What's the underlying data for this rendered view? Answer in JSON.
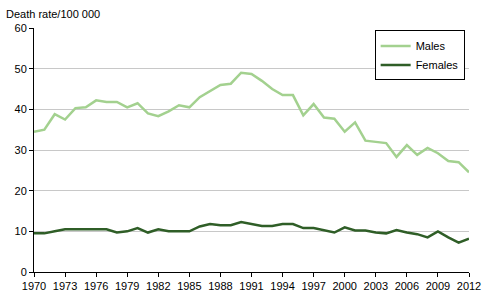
{
  "chart_data": {
    "type": "line",
    "y_label": "Death rate/100 000",
    "x": [
      1970,
      1971,
      1972,
      1973,
      1974,
      1975,
      1976,
      1977,
      1978,
      1979,
      1980,
      1981,
      1982,
      1983,
      1984,
      1985,
      1986,
      1987,
      1988,
      1989,
      1990,
      1991,
      1992,
      1993,
      1994,
      1995,
      1996,
      1997,
      1998,
      1999,
      2000,
      2001,
      2002,
      2003,
      2004,
      2005,
      2006,
      2007,
      2008,
      2009,
      2010,
      2011,
      2012
    ],
    "series": [
      {
        "name": "Males",
        "color": "#a3d18f",
        "values": [
          34.5,
          35,
          38.8,
          37.5,
          40.3,
          40.5,
          42.2,
          41.8,
          41.8,
          40.5,
          41.5,
          39,
          38.3,
          39.5,
          41,
          40.5,
          43,
          44.5,
          46,
          46.3,
          49,
          48.7,
          47,
          45,
          43.5,
          43.5,
          38.5,
          41.3,
          38,
          37.7,
          34.5,
          36.8,
          32.3,
          32,
          31.7,
          28.3,
          31.2,
          28.8,
          30.5,
          29.2,
          27.3,
          27,
          24.5
        ]
      },
      {
        "name": "Females",
        "color": "#2f5e27",
        "values": [
          9.5,
          9.5,
          10,
          10.5,
          10.5,
          10.5,
          10.5,
          10.5,
          9.7,
          10,
          10.8,
          9.7,
          10.5,
          10,
          10,
          10,
          11.2,
          11.8,
          11.5,
          11.5,
          12.3,
          11.8,
          11.3,
          11.3,
          11.8,
          11.8,
          10.8,
          10.8,
          10.3,
          9.7,
          11,
          10.2,
          10.2,
          9.7,
          9.5,
          10.3,
          9.7,
          9.3,
          8.5,
          10,
          8.5,
          7.2,
          8.2
        ]
      }
    ],
    "xlim": [
      1970,
      2012
    ],
    "xticks": [
      1970,
      1973,
      1976,
      1979,
      1982,
      1985,
      1988,
      1991,
      1994,
      1997,
      2000,
      2003,
      2006,
      2009,
      2012
    ],
    "ylim": [
      0,
      60
    ],
    "yticks": [
      0,
      10,
      20,
      30,
      40,
      50,
      60
    ],
    "grid": true,
    "legend": "top-right"
  }
}
